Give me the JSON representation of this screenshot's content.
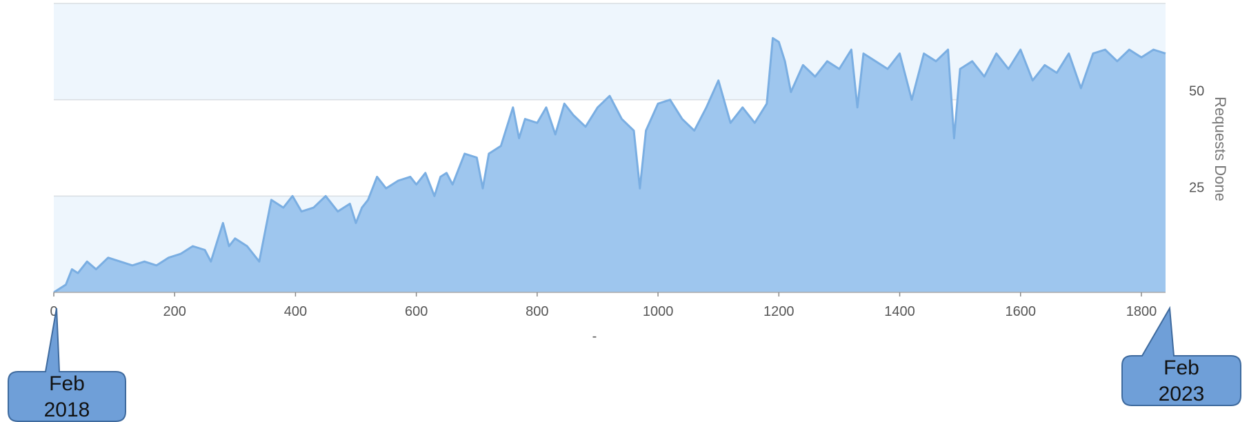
{
  "chart_data": {
    "type": "area",
    "title": "",
    "xlabel": "",
    "ylabel": "Requests Done",
    "xlim": [
      0,
      1840
    ],
    "ylim": [
      0,
      75
    ],
    "x_ticks": [
      0,
      200,
      400,
      600,
      800,
      1000,
      1200,
      1400,
      1600,
      1800
    ],
    "y_ticks": [
      25,
      50
    ],
    "y_axis_side": "right",
    "grid": true,
    "legend": "none",
    "colors": {
      "area_fill": "#9ec6ee",
      "line": "#7aaee2",
      "band_fill": "#eef6fd",
      "gridline": "#d8dde2",
      "callout_fill": "#6f9fd8",
      "callout_stroke": "#3e6a9e"
    },
    "series": [
      {
        "x": [
          0,
          20,
          30,
          40,
          55,
          70,
          90,
          110,
          130,
          150,
          170,
          190,
          210,
          230,
          250,
          260,
          270,
          280,
          290,
          300,
          320,
          340,
          350,
          360,
          380,
          395,
          410,
          430,
          450,
          470,
          490,
          500,
          510,
          520,
          535,
          550,
          570,
          590,
          600,
          615,
          630,
          640,
          650,
          660,
          680,
          700,
          710,
          720,
          740,
          760,
          770,
          780,
          800,
          815,
          830,
          845,
          860,
          880,
          900,
          920,
          940,
          960,
          970,
          980,
          1000,
          1020,
          1040,
          1060,
          1080,
          1100,
          1120,
          1140,
          1160,
          1180,
          1190,
          1200,
          1210,
          1220,
          1240,
          1260,
          1280,
          1300,
          1320,
          1330,
          1340,
          1360,
          1380,
          1400,
          1420,
          1440,
          1460,
          1480,
          1490,
          1500,
          1520,
          1540,
          1560,
          1580,
          1600,
          1620,
          1640,
          1660,
          1680,
          1700,
          1720,
          1740,
          1760,
          1780,
          1800,
          1820,
          1840
        ],
        "y": [
          0,
          2,
          6,
          5,
          8,
          6,
          9,
          8,
          7,
          8,
          7,
          9,
          10,
          12,
          11,
          8,
          13,
          18,
          12,
          14,
          12,
          8,
          16,
          24,
          22,
          25,
          21,
          22,
          25,
          21,
          23,
          18,
          22,
          24,
          30,
          27,
          29,
          30,
          28,
          31,
          25,
          30,
          31,
          28,
          36,
          35,
          27,
          36,
          38,
          48,
          40,
          45,
          44,
          48,
          41,
          49,
          46,
          43,
          48,
          51,
          45,
          42,
          27,
          42,
          49,
          50,
          45,
          42,
          48,
          55,
          44,
          48,
          44,
          49,
          66,
          65,
          60,
          52,
          59,
          56,
          60,
          58,
          63,
          48,
          62,
          60,
          58,
          62,
          50,
          62,
          60,
          63,
          40,
          58,
          60,
          56,
          62,
          58,
          63,
          55,
          59,
          57,
          62,
          53,
          62,
          63,
          60,
          63,
          61,
          63,
          62
        ]
      }
    ]
  },
  "annotations": {
    "start_callout": {
      "line1": "Feb",
      "line2": "2018"
    },
    "end_callout": {
      "line1": "Feb",
      "line2": "2023"
    },
    "x_axis_mark": "-"
  }
}
